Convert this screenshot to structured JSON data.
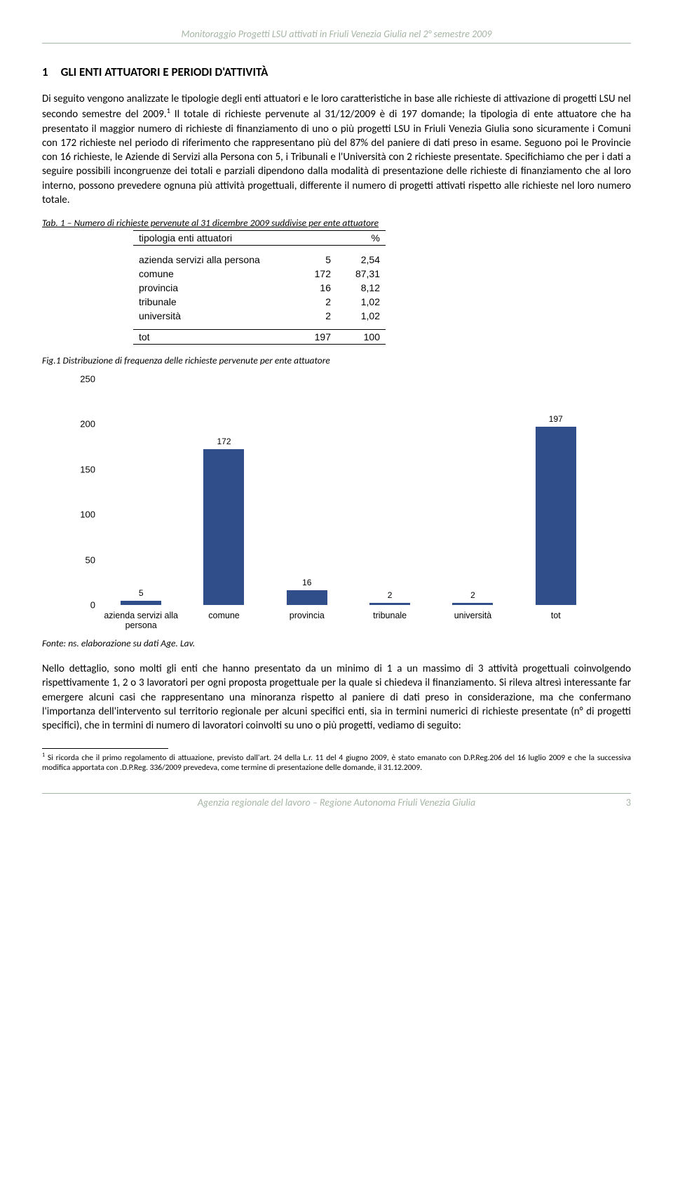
{
  "header": "Monitoraggio Progetti LSU attivati in Friuli Venezia Giulia nel 2° semestre 2009",
  "section_number": "1",
  "section_title": "GLI ENTI ATTUATORI E PERIODI D'ATTIVITÀ",
  "para1": "Di seguito vengono analizzate le tipologie degli enti attuatori e le loro caratteristiche in base alle richieste di attivazione di progetti LSU nel secondo semestre del 2009.",
  "para1b_pre_sup": "",
  "para1b_post_sup": "Il totale di richieste pervenute al 31/12/2009 è di 197 domande; la tipologia di ente attuatore che ha presentato il maggior numero di richieste di finanziamento di uno o più progetti LSU in Friuli Venezia Giulia sono sicuramente i Comuni con 172 richieste nel periodo di riferimento che rappresentano più del 87% del paniere di dati preso in esame. Seguono poi le Provincie con 16 richieste, le Aziende di Servizi alla Persona con 5, i Tribunali e l'Università con 2 richieste presentate. Specifichiamo che per i dati a seguire possibili incongruenze dei totali e parziali dipendono dalla modalità di presentazione delle richieste di finanziamento che al loro interno, possono prevedere ognuna più attività progettuali, differente il numero di progetti attivati rispetto alle richieste nel loro numero totale.",
  "tab1_caption": "Tab. 1 – Numero di richieste pervenute al 31 dicembre 2009 suddivise per ente attuatore",
  "table": {
    "header_col1": "tipologia enti attuatori",
    "header_col3": "%",
    "rows": [
      {
        "label": "azienda servizi alla persona",
        "count": "5",
        "pct": "2,54"
      },
      {
        "label": "comune",
        "count": "172",
        "pct": "87,31"
      },
      {
        "label": "provincia",
        "count": "16",
        "pct": "8,12"
      },
      {
        "label": "tribunale",
        "count": "2",
        "pct": "1,02"
      },
      {
        "label": "università",
        "count": "2",
        "pct": "1,02"
      }
    ],
    "total_label": "tot",
    "total_count": "197",
    "total_pct": "100"
  },
  "fig1_caption": "Fig.1 Distribuzione di frequenza delle richieste pervenute per ente attuatore",
  "chart": {
    "type": "bar",
    "categories": [
      "azienda servizi alla persona",
      "comune",
      "provincia",
      "tribunale",
      "università",
      "tot"
    ],
    "values": [
      5,
      172,
      16,
      2,
      2,
      197
    ],
    "bar_color": "#2f4e8a",
    "ylim": [
      0,
      250
    ],
    "ytick_step": 50,
    "background_color": "#ffffff",
    "label_fontsize": 12
  },
  "source": "Fonte: ns. elaborazione su dati Age. Lav.",
  "para2": "Nello dettaglio, sono molti gli enti che hanno presentato da un minimo di 1 a un massimo di 3 attività progettuali coinvolgendo rispettivamente 1, 2 o 3 lavoratori per ogni proposta progettuale per la quale si chiedeva il finanziamento. Si rileva altresì interessante far emergere alcuni casi che rappresentano una minoranza rispetto al paniere di dati preso in considerazione, ma che confermano l'importanza dell'intervento sul territorio regionale per alcuni specifici enti, sia in termini numerici di richieste presentate (n° di progetti specifici), che in termini di numero di lavoratori coinvolti su uno o più progetti, vediamo di seguito:",
  "footnote": "Si ricorda che il primo regolamento di attuazione, previsto dall'art. 24 della L.r. 11 del 4 giugno 2009, è stato emanato con D.P.Reg.206 del 16 luglio 2009 e che la successiva modifica apportata con .D.P.Reg. 336/2009 prevedeva, come termine di presentazione delle domande, il 31.12.2009.",
  "footer": "Agenzia regionale del lavoro – Regione Autonoma Friuli Venezia Giulia",
  "page_number": "3"
}
